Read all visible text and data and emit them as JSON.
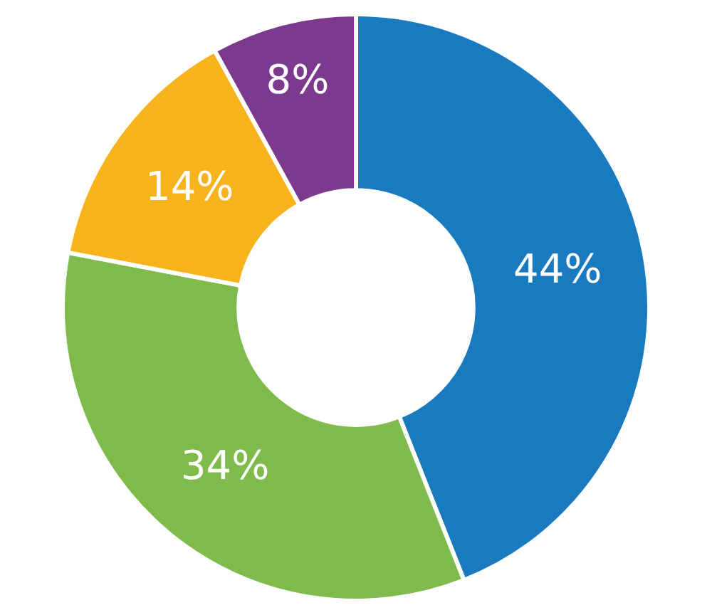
{
  "chart_data": {
    "type": "donut",
    "categories": [
      null,
      null,
      null,
      null
    ],
    "values": [
      44,
      34,
      14,
      8
    ],
    "colors": [
      "#1a7abf",
      "#7fba4c",
      "#f6b31b",
      "#7b3a8e"
    ],
    "value_labels": [
      "44%",
      "34%",
      "14%",
      "8%"
    ],
    "legend": false
  }
}
